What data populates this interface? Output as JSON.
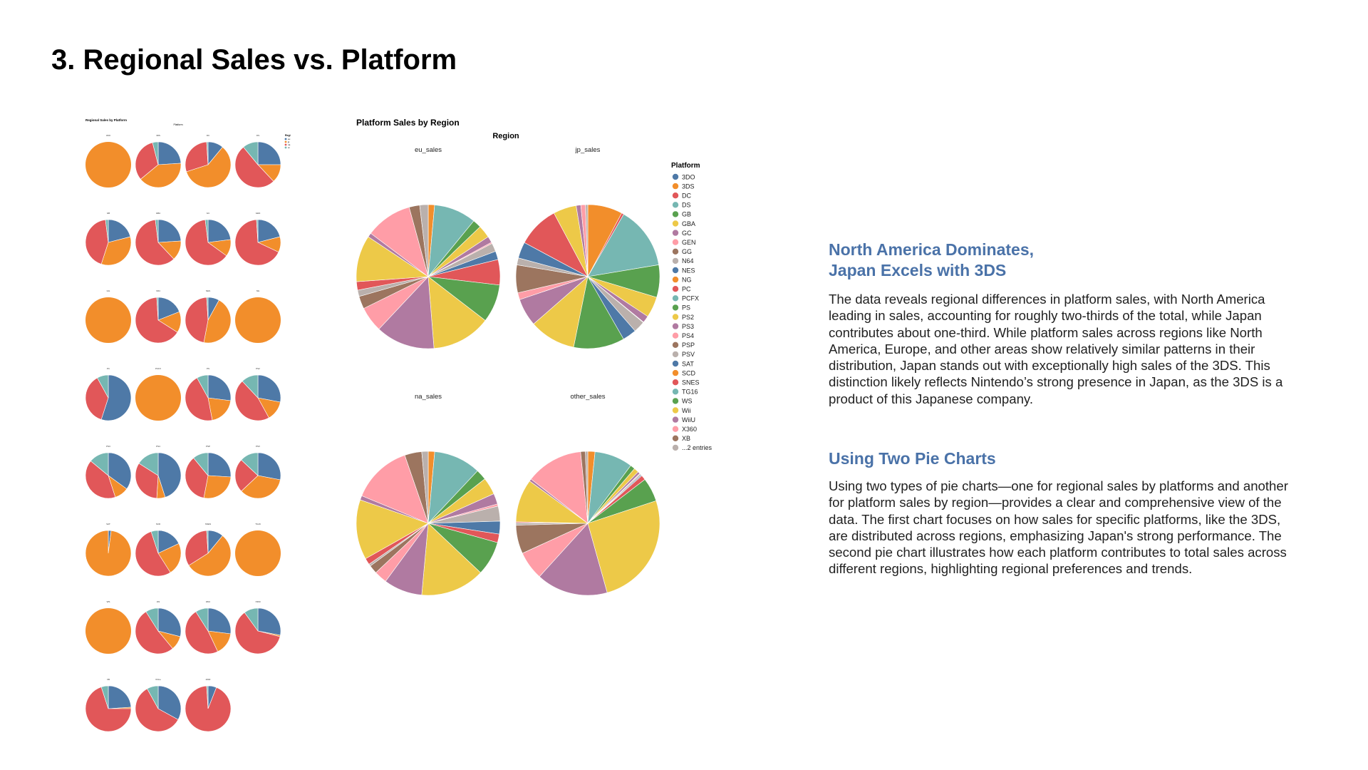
{
  "slide": {
    "title": "3. Regional Sales vs. Platform"
  },
  "sections": [
    {
      "title_lines": [
        "North America Dominates,",
        "Japan Excels with 3DS"
      ],
      "body": "The data reveals regional differences in platform sales, with North America leading in sales, accounting for roughly two-thirds of the total, while Japan contributes about one-third. While platform sales across regions like North America, Europe, and other areas show relatively similar patterns in their distribution, Japan stands out with exceptionally high sales of the 3DS. This distinction likely reflects Nintendo’s strong presence in Japan, as the 3DS is a product of this Japanese company."
    },
    {
      "title_lines": [
        "Using Two Pie Charts"
      ],
      "body": "Using two types of pie charts—one for regional sales by platforms and another for platform sales by region—provides a clear and comprehensive view of the data. The first chart focuses on how sales for specific platforms, like the 3DS, are distributed across regions, emphasizing Japan's strong performance. The second pie chart illustrates how each platform contributes to total sales across different regions, highlighting regional preferences and trends."
    }
  ],
  "colors": {
    "title": "#000000",
    "section_title": "#4a72a8",
    "region": {
      "eu_sales": "#4e79a7",
      "jp_sales": "#f28e2b",
      "na_sales": "#e15759",
      "other_sales": "#76b7b2"
    }
  },
  "chart_data": [
    {
      "type": "pie",
      "title": "Regional Sales by Platform",
      "facet_header": "Platform",
      "legend_title": "Regi",
      "legend_entries": [
        "eu",
        "jp",
        "na",
        "ot"
      ],
      "legend_placement": "top-right",
      "series_order": [
        "eu_sales",
        "jp_sales",
        "na_sales",
        "other_sales"
      ],
      "facets": [
        {
          "label": "3DO",
          "values": [
            0,
            100,
            0,
            0
          ]
        },
        {
          "label": "3DS",
          "values": [
            24,
            40,
            32,
            4
          ]
        },
        {
          "label": "DC",
          "values": [
            11,
            59,
            29,
            1
          ]
        },
        {
          "label": "DS",
          "values": [
            25,
            13,
            51,
            11
          ]
        },
        {
          "label": "GB",
          "values": [
            21,
            34,
            43,
            2
          ]
        },
        {
          "label": "GBA",
          "values": [
            24,
            14,
            60,
            2
          ]
        },
        {
          "label": "GC",
          "values": [
            23,
            12,
            63,
            2
          ]
        },
        {
          "label": "GEN",
          "values": [
            21,
            11,
            67,
            1
          ]
        },
        {
          "label": "GG",
          "values": [
            0,
            100,
            0,
            0
          ]
        },
        {
          "label": "N64",
          "values": [
            19,
            15,
            65,
            1
          ]
        },
        {
          "label": "NES",
          "values": [
            8,
            45,
            46,
            1
          ]
        },
        {
          "label": "NG",
          "values": [
            0,
            100,
            0,
            0
          ]
        },
        {
          "label": "PC",
          "values": [
            55,
            0,
            37,
            8
          ]
        },
        {
          "label": "PCFX",
          "values": [
            0,
            100,
            0,
            0
          ]
        },
        {
          "label": "PS",
          "values": [
            27,
            20,
            45,
            8
          ]
        },
        {
          "label": "PS2",
          "values": [
            28,
            14,
            46,
            12
          ]
        },
        {
          "label": "PS3",
          "values": [
            35,
            10,
            41,
            14
          ]
        },
        {
          "label": "PS4",
          "values": [
            45,
            6,
            33,
            16
          ]
        },
        {
          "label": "PSP",
          "values": [
            26,
            27,
            36,
            11
          ]
        },
        {
          "label": "PSV",
          "values": [
            28,
            35,
            24,
            13
          ]
        },
        {
          "label": "SAT",
          "values": [
            2,
            98,
            0,
            0
          ]
        },
        {
          "label": "SCD",
          "values": [
            18,
            23,
            54,
            5
          ]
        },
        {
          "label": "SNES",
          "values": [
            11,
            55,
            33,
            1
          ]
        },
        {
          "label": "TG16",
          "values": [
            0,
            100,
            0,
            0
          ]
        },
        {
          "label": "WS",
          "values": [
            0,
            100,
            0,
            0
          ]
        },
        {
          "label": "Wii",
          "values": [
            29,
            10,
            52,
            9
          ]
        },
        {
          "label": "WiiU",
          "values": [
            27,
            16,
            48,
            9
          ]
        },
        {
          "label": "X360",
          "values": [
            28,
            1,
            61,
            10
          ]
        },
        {
          "label": "XB",
          "values": [
            24,
            1,
            70,
            5
          ]
        },
        {
          "label": "XOne",
          "values": [
            33,
            0,
            59,
            8
          ]
        },
        {
          "label": "2600",
          "values": [
            6,
            0,
            93,
            1
          ]
        }
      ]
    },
    {
      "type": "pie",
      "title": "Platform Sales by Region",
      "facet_header": "Region",
      "legend_title": "Platform",
      "legend_placement": "right",
      "platforms": [
        "3DO",
        "3DS",
        "DC",
        "DS",
        "GB",
        "GBA",
        "GC",
        "GEN",
        "GG",
        "N64",
        "NES",
        "NG",
        "PC",
        "PCFX",
        "PS",
        "PS2",
        "PS3",
        "PS4",
        "PSP",
        "PSV",
        "SAT",
        "SCD",
        "SNES",
        "TG16",
        "WS",
        "Wii",
        "WiiU",
        "X360",
        "XB",
        "...2 entries"
      ],
      "platform_colors": [
        "#4e79a7",
        "#f28e2b",
        "#e15759",
        "#76b7b2",
        "#59a14f",
        "#edc948",
        "#b07aa1",
        "#ff9da7",
        "#9c755f",
        "#bab0ac",
        "#4e79a7",
        "#f28e2b",
        "#e15759",
        "#76b7b2",
        "#59a14f",
        "#edc948",
        "#b07aa1",
        "#ff9da7",
        "#9c755f",
        "#bab0ac",
        "#4e79a7",
        "#f28e2b",
        "#e15759",
        "#76b7b2",
        "#59a14f",
        "#edc948",
        "#b07aa1",
        "#ff9da7",
        "#9c755f",
        "#bab0ac"
      ],
      "legend_entries": [
        "3DO",
        "3DS",
        "DC",
        "DS",
        "GB",
        "GBA",
        "GC",
        "GEN",
        "GG",
        "N64",
        "NES",
        "NG",
        "PC",
        "PCFX",
        "PS",
        "PS2",
        "PS3",
        "PS4",
        "PSP",
        "PSV",
        "SAT",
        "SCD",
        "SNES",
        "TG16",
        "WS",
        "Wii",
        "WiiU",
        "X360",
        "XB",
        "...2 entries"
      ],
      "regions": [
        {
          "label": "eu_sales",
          "values": [
            0,
            1.5,
            0,
            10,
            2,
            3,
            1.5,
            0.3,
            0,
            2,
            2,
            0,
            6,
            0,
            9,
            14,
            14,
            6,
            3,
            1.5,
            0,
            0,
            2,
            0,
            0,
            11,
            1,
            11,
            2.5,
            2
          ]
        },
        {
          "label": "jp_sales",
          "values": [
            0,
            7.5,
            0.5,
            13.5,
            7,
            4.5,
            1.5,
            0.1,
            0,
            2.5,
            3,
            0,
            0,
            0,
            11,
            10,
            6,
            1.5,
            6,
            1.5,
            3.5,
            0,
            9,
            0,
            0,
            5,
            1,
            1,
            0,
            0.5
          ]
        },
        {
          "label": "na_sales",
          "values": [
            0,
            1.5,
            0,
            11,
            2.5,
            4,
            2.5,
            0.5,
            0,
            3.5,
            3,
            0,
            2,
            0,
            8,
            15,
            9,
            3,
            2,
            0.5,
            0,
            0,
            1.5,
            0,
            0,
            14,
            1,
            14,
            4,
            1.5
          ]
        },
        {
          "label": "other_sales",
          "values": [
            0,
            1.5,
            0,
            8,
            1,
            1,
            0.5,
            0.1,
            0,
            0.3,
            0.2,
            0,
            1,
            0,
            5,
            24,
            15,
            6,
            6,
            0.5,
            0,
            0,
            0.2,
            0,
            0,
            9,
            0.5,
            12,
            1,
            0.5
          ]
        }
      ]
    }
  ]
}
